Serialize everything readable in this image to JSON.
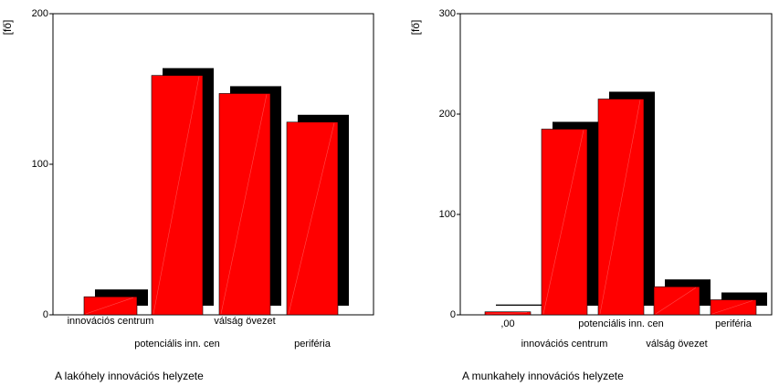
{
  "chart_data": [
    {
      "type": "bar",
      "style": "3d",
      "ylabel": "[fő]",
      "xlabel": "A lakóhely innovációs helyzete",
      "ylim": [
        0,
        200
      ],
      "yticks": [
        0,
        100,
        200
      ],
      "tick_labels": [
        "0",
        "100",
        "200"
      ],
      "categories": [
        "innovációs centrum",
        "potenciális inn. cen",
        "válság övezet",
        "periféria"
      ],
      "values": [
        12,
        159,
        147,
        128
      ],
      "bar_color": "#ff0000",
      "shadow_color": "#000000",
      "grid": false
    },
    {
      "type": "bar",
      "style": "3d",
      "ylabel": "[fő]",
      "xlabel": "A munkahely innovációs helyzete",
      "ylim": [
        0,
        300
      ],
      "yticks": [
        0,
        100,
        200,
        300
      ],
      "tick_labels": [
        "0",
        "100",
        "200",
        "300"
      ],
      "categories": [
        ",00",
        "innovációs centrum",
        "potenciális inn. cen",
        "válság övezet",
        "periféria"
      ],
      "values": [
        3,
        185,
        215,
        28,
        15
      ],
      "bar_color": "#ff0000",
      "shadow_color": "#000000",
      "grid": false
    }
  ]
}
